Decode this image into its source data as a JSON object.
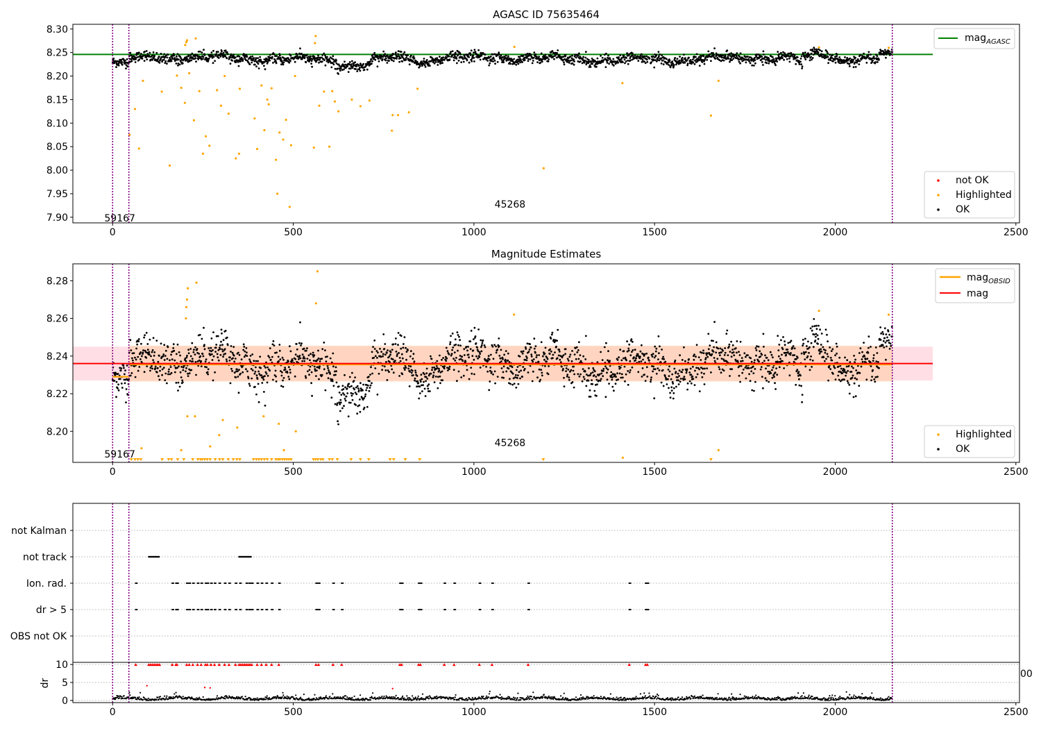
{
  "figure": {
    "colors": {
      "ok": "#000000",
      "highlighted": "#ffa500",
      "not_ok": "#ff0000",
      "epoch_line": "#800080",
      "mag_agasc": "#008000",
      "mag_obsid": "#ffa500",
      "mag": "#ff0000",
      "band_mag": "#ffc0cb",
      "band_obsid": "#ffd2b4",
      "grid": "#b0b0b0"
    },
    "epoch_lines_x": [
      0,
      45,
      2158
    ]
  },
  "chart_data": [
    {
      "type": "scatter",
      "title": "AGASC ID 75635464",
      "xlim": [
        -110,
        2510
      ],
      "ylim": [
        7.888,
        8.31
      ],
      "x_ticks": [
        0,
        500,
        1000,
        1500,
        2000,
        2500
      ],
      "x_tick_labels": [
        "0",
        "500",
        "1000",
        "1500",
        "2000",
        "2500"
      ],
      "y_ticks": [
        7.9,
        7.95,
        8.0,
        8.05,
        8.1,
        8.15,
        8.2,
        8.25,
        8.3
      ],
      "y_tick_labels": [
        "7.90",
        "7.95",
        "8.00",
        "8.05",
        "8.10",
        "8.15",
        "8.20",
        "8.25",
        "8.30"
      ],
      "reference_line": {
        "value": 8.246,
        "x_range": [
          -110,
          2270
        ],
        "color": "#008000"
      },
      "annotations": [
        {
          "text": "59167",
          "x": 20,
          "y": 7.898
        },
        {
          "text": "45268",
          "x": 1100,
          "y": 7.928
        }
      ],
      "legend_top": {
        "placement": "upper right",
        "entries": [
          {
            "main": "mag",
            "sub": "AGASC",
            "color": "#008000",
            "kind": "line"
          }
        ]
      },
      "legend_bottom": {
        "placement": "lower right",
        "entries": [
          {
            "label": "not OK",
            "color": "#ff0000"
          },
          {
            "label": "Highlighted",
            "color": "#ffa500"
          },
          {
            "label": "OK",
            "color": "#000000"
          }
        ]
      },
      "series_ok": {
        "description_ranges": [
          {
            "x": [
              0,
              45
            ],
            "y_center": 8.229,
            "spread": 0.006
          },
          {
            "x": [
              45,
              2158
            ],
            "y_center": 8.236,
            "spread": 0.012
          }
        ]
      },
      "highlighted_points": [
        [
          47,
          8.075
        ],
        [
          62,
          8.13
        ],
        [
          73,
          8.046
        ],
        [
          84,
          8.19
        ],
        [
          136,
          8.167
        ],
        [
          158,
          8.01
        ],
        [
          178,
          8.201
        ],
        [
          190,
          8.175
        ],
        [
          200,
          8.143
        ],
        [
          201,
          8.266
        ],
        [
          204,
          8.272
        ],
        [
          206,
          8.276
        ],
        [
          212,
          8.206
        ],
        [
          225,
          8.106
        ],
        [
          230,
          8.28
        ],
        [
          240,
          8.168
        ],
        [
          250,
          8.035
        ],
        [
          258,
          8.072
        ],
        [
          268,
          8.052
        ],
        [
          289,
          8.17
        ],
        [
          300,
          8.137
        ],
        [
          310,
          8.2
        ],
        [
          321,
          8.12
        ],
        [
          341,
          8.025
        ],
        [
          350,
          8.035
        ],
        [
          352,
          8.173
        ],
        [
          393,
          8.11
        ],
        [
          400,
          8.045
        ],
        [
          412,
          8.18
        ],
        [
          420,
          8.085
        ],
        [
          428,
          8.15
        ],
        [
          432,
          8.14
        ],
        [
          440,
          8.174
        ],
        [
          452,
          8.022
        ],
        [
          456,
          7.95
        ],
        [
          462,
          8.08
        ],
        [
          472,
          8.065
        ],
        [
          480,
          8.107
        ],
        [
          490,
          7.922
        ],
        [
          494,
          8.053
        ],
        [
          505,
          8.2
        ],
        [
          557,
          8.048
        ],
        [
          560,
          8.27
        ],
        [
          562,
          8.285
        ],
        [
          572,
          8.137
        ],
        [
          585,
          8.167
        ],
        [
          600,
          8.05
        ],
        [
          608,
          8.168
        ],
        [
          615,
          8.146
        ],
        [
          625,
          8.125
        ],
        [
          662,
          8.15
        ],
        [
          686,
          8.136
        ],
        [
          711,
          8.148
        ],
        [
          773,
          8.084
        ],
        [
          775,
          8.117
        ],
        [
          790,
          8.117
        ],
        [
          820,
          8.123
        ],
        [
          844,
          8.173
        ],
        [
          1193,
          8.004
        ],
        [
          1411,
          8.185
        ],
        [
          1656,
          8.116
        ],
        [
          1677,
          8.19
        ]
      ]
    },
    {
      "type": "scatter",
      "title": "Magnitude Estimates",
      "xlim": [
        -110,
        2510
      ],
      "ylim": [
        8.1835,
        8.289
      ],
      "x_ticks": [
        0,
        500,
        1000,
        1500,
        2000,
        2500
      ],
      "x_tick_labels": [
        "0",
        "500",
        "1000",
        "1500",
        "2000",
        "2500"
      ],
      "y_ticks": [
        8.2,
        8.22,
        8.24,
        8.26,
        8.28
      ],
      "y_tick_labels": [
        "8.20",
        "8.22",
        "8.24",
        "8.26",
        "8.28"
      ],
      "mag_line": {
        "value": 8.236,
        "band": [
          8.227,
          8.245
        ],
        "x_range": [
          -110,
          2270
        ]
      },
      "obsid_band": [
        8.2265,
        8.2455
      ],
      "obsid_lines": [
        {
          "x": [
            0,
            45
          ],
          "value": 8.229
        },
        {
          "x": [
            45,
            2158
          ],
          "value": 8.2355
        }
      ],
      "annotations": [
        {
          "text": "59167",
          "x": 20,
          "y": 8.188
        },
        {
          "text": "45268",
          "x": 1100,
          "y": 8.194
        }
      ],
      "legend_top": {
        "placement": "upper right",
        "entries": [
          {
            "main": "mag",
            "sub": "OBSID",
            "color": "#ffa500",
            "kind": "line"
          },
          {
            "main": "mag",
            "sub": "",
            "color": "#ff0000",
            "kind": "line"
          }
        ]
      },
      "legend_bottom": {
        "placement": "lower right",
        "entries": [
          {
            "label": "Highlighted",
            "color": "#ffa500"
          },
          {
            "label": "OK",
            "color": "#000000"
          }
        ]
      },
      "highlighted_points": [
        [
          203,
          8.26
        ],
        [
          204,
          8.266
        ],
        [
          206,
          8.27
        ],
        [
          208,
          8.276
        ],
        [
          232,
          8.279
        ],
        [
          563,
          8.268
        ],
        [
          567,
          8.285
        ],
        [
          1111,
          8.262
        ],
        [
          1955,
          8.264
        ],
        [
          2148,
          8.262
        ],
        [
          80,
          8.191
        ],
        [
          190,
          8.19
        ],
        [
          207,
          8.208
        ],
        [
          228,
          8.208
        ],
        [
          270,
          8.192
        ],
        [
          295,
          8.198
        ],
        [
          305,
          8.206
        ],
        [
          345,
          8.202
        ],
        [
          418,
          8.208
        ],
        [
          460,
          8.204
        ],
        [
          474,
          8.19
        ],
        [
          507,
          8.2
        ],
        [
          1412,
          8.186
        ],
        [
          1677,
          8.19
        ]
      ],
      "clipped_x": [
        52,
        62,
        70,
        78,
        137,
        155,
        163,
        180,
        197,
        222,
        236,
        243,
        248,
        255,
        262,
        270,
        284,
        296,
        305,
        320,
        334,
        344,
        352,
        390,
        398,
        405,
        412,
        420,
        428,
        440,
        452,
        458,
        463,
        470,
        476,
        482,
        488,
        494,
        556,
        562,
        568,
        576,
        582,
        600,
        608,
        622,
        660,
        686,
        709,
        768,
        778,
        810,
        850,
        1192,
        1656
      ]
    },
    {
      "type": "scatter",
      "title": "",
      "xlim": [
        -110,
        2510
      ],
      "categories": [
        "not Kalman",
        "not track",
        "Ion. rad.",
        "dr > 5",
        "OBS not OK"
      ],
      "flags": {
        "not track": [
          [
            100,
            130
          ],
          [
            350,
            385
          ]
        ],
        "Ion. rad.": [
          64,
          165,
          175,
          178,
          205,
          212,
          222,
          235,
          245,
          257,
          262,
          272,
          282,
          295,
          310,
          322,
          340,
          352,
          370,
          378,
          385,
          400,
          412,
          425,
          440,
          460,
          563,
          570,
          610,
          634,
          795,
          800,
          847,
          852,
          918,
          945,
          1015,
          1050,
          1150,
          1430,
          1475,
          1480
        ],
        "dr > 5": [
          64,
          165,
          175,
          178,
          205,
          212,
          222,
          235,
          245,
          257,
          262,
          272,
          282,
          295,
          310,
          322,
          340,
          352,
          370,
          378,
          385,
          400,
          412,
          425,
          440,
          460,
          563,
          570,
          610,
          634,
          795,
          800,
          847,
          852,
          918,
          945,
          1015,
          1050,
          1150,
          1430,
          1475,
          1480
        ]
      }
    },
    {
      "type": "scatter",
      "title": "",
      "ylabel": "dr",
      "xlim": [
        -110,
        2510
      ],
      "ylim": [
        -0.6,
        10.6
      ],
      "x_ticks": [
        0,
        500,
        1000,
        1500,
        2000,
        2500
      ],
      "x_tick_labels": [
        "0",
        "500",
        "1000",
        "1500",
        "2000",
        "2500"
      ],
      "y_ticks": [
        0,
        5,
        10
      ],
      "y_tick_labels": [
        "0",
        "5",
        "10"
      ],
      "overlap_label": "00",
      "clipped_x": [
        64,
        100,
        105,
        110,
        115,
        120,
        125,
        130,
        165,
        175,
        178,
        205,
        212,
        222,
        235,
        245,
        257,
        262,
        272,
        282,
        295,
        310,
        322,
        340,
        350,
        355,
        360,
        365,
        370,
        375,
        380,
        385,
        400,
        412,
        425,
        440,
        460,
        563,
        570,
        610,
        634,
        795,
        800,
        847,
        852,
        918,
        945,
        1015,
        1050,
        1150,
        1430,
        1475,
        1480
      ],
      "red_points": [
        [
          95,
          4.1
        ],
        [
          255,
          3.6
        ],
        [
          270,
          3.5
        ],
        [
          775,
          3.3
        ]
      ]
    }
  ]
}
